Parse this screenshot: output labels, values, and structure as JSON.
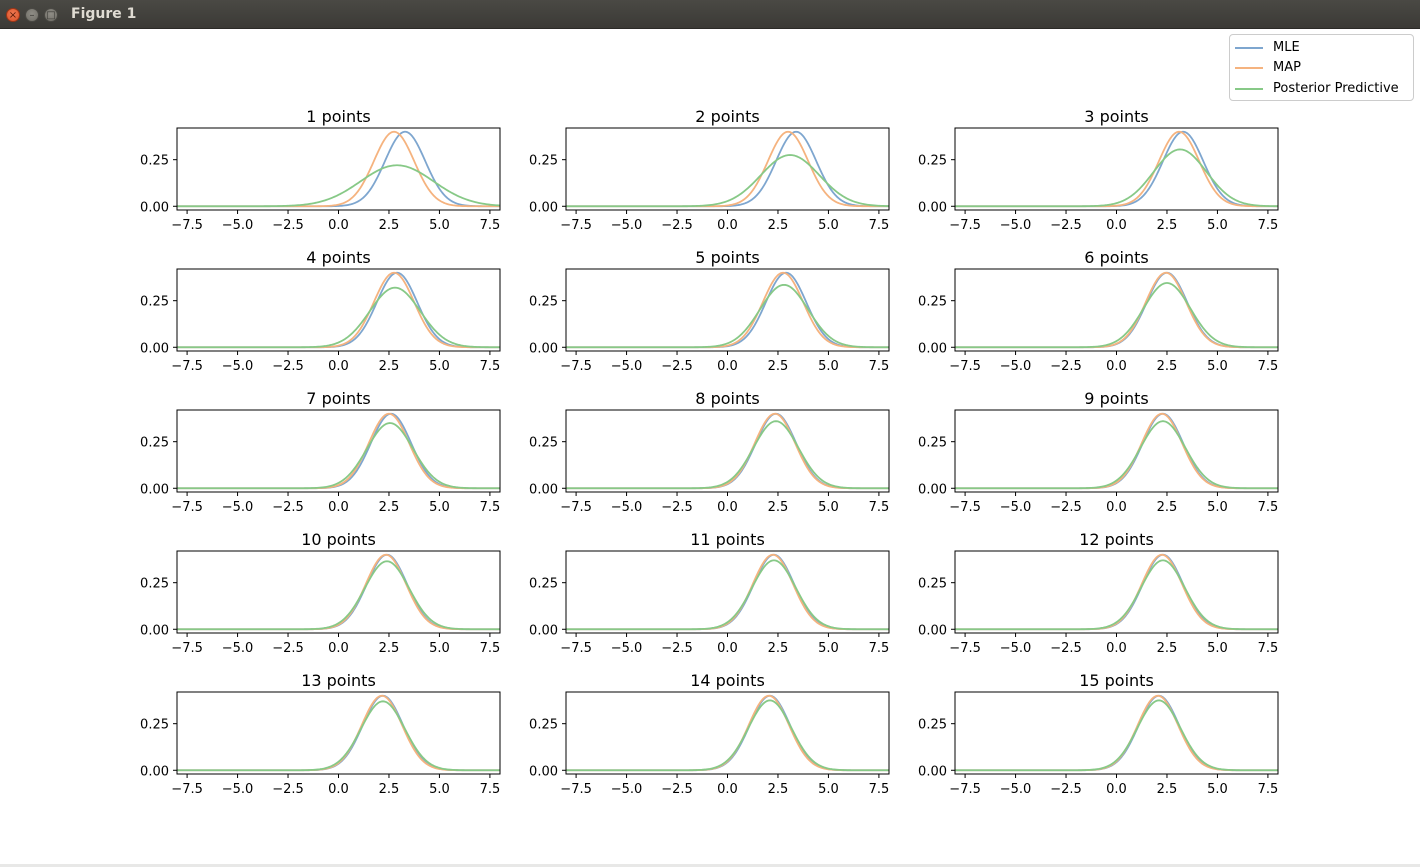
{
  "window": {
    "title": "Figure 1",
    "close_glyph": "×",
    "minimize_glyph": "–",
    "maximize_glyph": "□"
  },
  "legend": [
    {
      "label": "MLE",
      "color": "#7ea6cf"
    },
    {
      "label": "MAP",
      "color": "#f5b37f"
    },
    {
      "label": "Posterior Predictive",
      "color": "#87c987"
    }
  ],
  "chart_data": {
    "type": "line",
    "xlim": [
      -8,
      8
    ],
    "ylim": [
      -0.02,
      0.42
    ],
    "xticks": [
      -7.5,
      -5.0,
      -2.5,
      0.0,
      2.5,
      5.0,
      7.5
    ],
    "xtick_labels": [
      "−7.5",
      "−5.0",
      "−2.5",
      "0.0",
      "2.5",
      "5.0",
      "7.5"
    ],
    "yticks": [
      0.0,
      0.25
    ],
    "ytick_labels": [
      "0.00",
      "0.25"
    ],
    "x_range": [
      -8,
      8
    ],
    "series_names": [
      "MLE",
      "MAP",
      "Posterior Predictive"
    ],
    "panels": [
      {
        "title": "1 points",
        "curves": [
          {
            "mu": 3.3,
            "peak": 0.4
          },
          {
            "mu": 2.75,
            "peak": 0.4
          },
          {
            "mu": 2.9,
            "peak": 0.22
          }
        ]
      },
      {
        "title": "2 points",
        "curves": [
          {
            "mu": 3.4,
            "peak": 0.4
          },
          {
            "mu": 3.0,
            "peak": 0.4
          },
          {
            "mu": 3.1,
            "peak": 0.275
          }
        ]
      },
      {
        "title": "3 points",
        "curves": [
          {
            "mu": 3.3,
            "peak": 0.4
          },
          {
            "mu": 3.1,
            "peak": 0.4
          },
          {
            "mu": 3.15,
            "peak": 0.305
          }
        ]
      },
      {
        "title": "4 points",
        "curves": [
          {
            "mu": 2.9,
            "peak": 0.4
          },
          {
            "mu": 2.75,
            "peak": 0.4
          },
          {
            "mu": 2.8,
            "peak": 0.32
          }
        ]
      },
      {
        "title": "5 points",
        "curves": [
          {
            "mu": 2.9,
            "peak": 0.4
          },
          {
            "mu": 2.75,
            "peak": 0.4
          },
          {
            "mu": 2.8,
            "peak": 0.335
          }
        ]
      },
      {
        "title": "6 points",
        "curves": [
          {
            "mu": 2.5,
            "peak": 0.4
          },
          {
            "mu": 2.45,
            "peak": 0.4
          },
          {
            "mu": 2.5,
            "peak": 0.345
          }
        ]
      },
      {
        "title": "7 points",
        "curves": [
          {
            "mu": 2.6,
            "peak": 0.4
          },
          {
            "mu": 2.5,
            "peak": 0.4
          },
          {
            "mu": 2.55,
            "peak": 0.35
          }
        ]
      },
      {
        "title": "8 points",
        "curves": [
          {
            "mu": 2.4,
            "peak": 0.4
          },
          {
            "mu": 2.35,
            "peak": 0.4
          },
          {
            "mu": 2.4,
            "peak": 0.36
          }
        ]
      },
      {
        "title": "9 points",
        "curves": [
          {
            "mu": 2.3,
            "peak": 0.4
          },
          {
            "mu": 2.25,
            "peak": 0.4
          },
          {
            "mu": 2.3,
            "peak": 0.36
          }
        ]
      },
      {
        "title": "10 points",
        "curves": [
          {
            "mu": 2.4,
            "peak": 0.4
          },
          {
            "mu": 2.35,
            "peak": 0.4
          },
          {
            "mu": 2.4,
            "peak": 0.365
          }
        ]
      },
      {
        "title": "11 points",
        "curves": [
          {
            "mu": 2.3,
            "peak": 0.4
          },
          {
            "mu": 2.25,
            "peak": 0.4
          },
          {
            "mu": 2.3,
            "peak": 0.37
          }
        ]
      },
      {
        "title": "12 points",
        "curves": [
          {
            "mu": 2.3,
            "peak": 0.4
          },
          {
            "mu": 2.25,
            "peak": 0.4
          },
          {
            "mu": 2.3,
            "peak": 0.37
          }
        ]
      },
      {
        "title": "13 points",
        "curves": [
          {
            "mu": 2.2,
            "peak": 0.4
          },
          {
            "mu": 2.15,
            "peak": 0.4
          },
          {
            "mu": 2.2,
            "peak": 0.37
          }
        ]
      },
      {
        "title": "14 points",
        "curves": [
          {
            "mu": 2.1,
            "peak": 0.4
          },
          {
            "mu": 2.05,
            "peak": 0.4
          },
          {
            "mu": 2.1,
            "peak": 0.375
          }
        ]
      },
      {
        "title": "15 points",
        "curves": [
          {
            "mu": 2.1,
            "peak": 0.4
          },
          {
            "mu": 2.05,
            "peak": 0.4
          },
          {
            "mu": 2.1,
            "peak": 0.375
          }
        ]
      }
    ]
  }
}
